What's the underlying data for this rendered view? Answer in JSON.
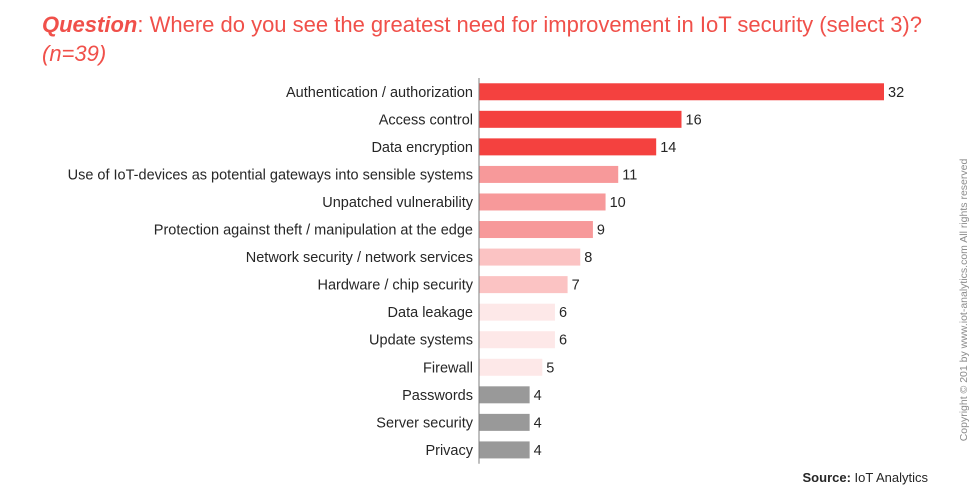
{
  "title": {
    "prefix": "Question",
    "colon": ":",
    "text": " Where do you see the greatest need for improvement in IoT security (select 3)? ",
    "sample": "(n=39)"
  },
  "source": {
    "label": "Source:",
    "value": " IoT Analytics"
  },
  "copyright": "Copyright © 201  by www.iot-analytics.com All rights reserved",
  "chart_data": {
    "type": "bar",
    "orientation": "horizontal",
    "categories": [
      "Authentication / authorization",
      "Access control",
      "Data encryption",
      "Use of IoT-devices as potential gateways into sensible systems",
      "Unpatched vulnerability",
      "Protection against theft / manipulation at the edge",
      "Network security / network services",
      "Hardware / chip security",
      "Data leakage",
      "Update systems",
      "Firewall",
      "Passwords",
      "Server security",
      "Privacy"
    ],
    "values": [
      32,
      16,
      14,
      11,
      10,
      9,
      8,
      7,
      6,
      6,
      5,
      4,
      4,
      4
    ],
    "colors": [
      "#f4413f",
      "#f4413f",
      "#f4413f",
      "#f7999a",
      "#f7999a",
      "#f7999a",
      "#fbc3c3",
      "#fbc3c3",
      "#fde8e8",
      "#fde8e8",
      "#fde8e8",
      "#999999",
      "#999999",
      "#999999"
    ],
    "data_labels": true,
    "grid": false,
    "xlim": [
      0,
      32
    ]
  }
}
